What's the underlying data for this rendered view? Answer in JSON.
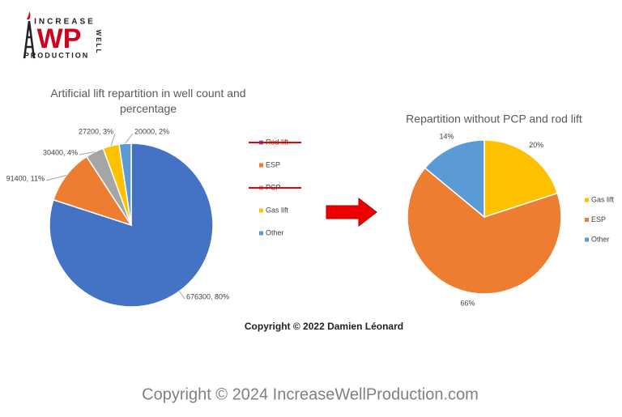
{
  "logo": {
    "top": "INCREASE",
    "mark": "WP",
    "side": "WELL",
    "bottom": "PRODUCTION"
  },
  "chart_data": [
    {
      "type": "pie",
      "title": "Artificial lift repartition in well count and percentage",
      "categories": [
        "Rod lift",
        "ESP",
        "PCP",
        "Gas lift",
        "Other"
      ],
      "values": [
        676300,
        91400,
        30400,
        27200,
        20000
      ],
      "value_labels": [
        "676300, 80%",
        "91400, 11%",
        "30400, 4%",
        "27200, 3%",
        "20000, 2%"
      ],
      "colors": [
        "#4472c4",
        "#ed7d31",
        "#a5a5a5",
        "#ffc000",
        "#5b9bd5"
      ],
      "legend_struck": [
        true,
        false,
        true,
        false,
        false
      ]
    },
    {
      "type": "pie",
      "title": "Repartition without PCP and rod lift",
      "categories": [
        "Gas lift",
        "ESP",
        "Other"
      ],
      "values": [
        20,
        66,
        14
      ],
      "value_labels": [
        "20%",
        "66%",
        "14%"
      ],
      "colors": [
        "#ffc000",
        "#ed7d31",
        "#5b9bd5"
      ],
      "legend_struck": [
        false,
        false,
        false
      ]
    }
  ],
  "copyright": "Copyright © 2022 Damien Léonard",
  "footer": "Copyright © 2024 IncreaseWellProduction.com"
}
